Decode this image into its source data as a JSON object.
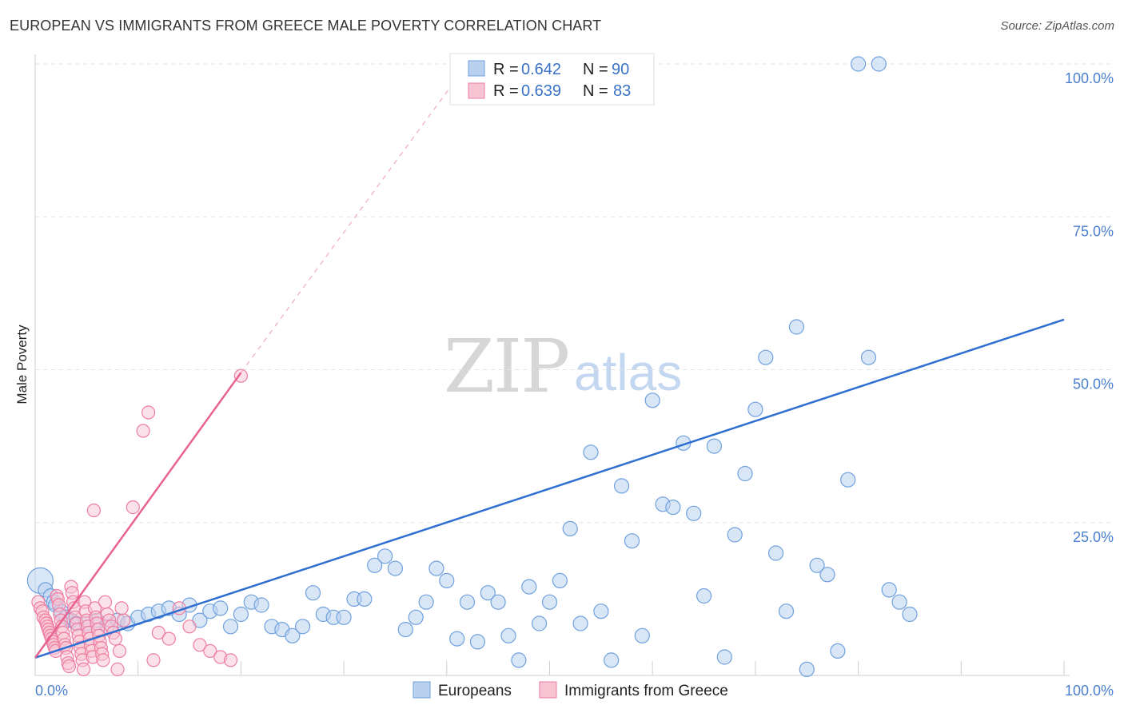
{
  "chart_data": {
    "type": "scatter",
    "title": "EUROPEAN VS IMMIGRANTS FROM GREECE MALE POVERTY CORRELATION CHART",
    "source": "Source: ZipAtlas.com",
    "xlabel": "",
    "ylabel": "Male Poverty",
    "xlim": [
      0,
      100
    ],
    "ylim": [
      0,
      100
    ],
    "x_tick_labels": [
      {
        "value": 0,
        "label": "0.0%"
      },
      {
        "value": 100,
        "label": "100.0%"
      }
    ],
    "y_tick_labels": [
      {
        "value": 25,
        "label": "25.0%"
      },
      {
        "value": 50,
        "label": "50.0%"
      },
      {
        "value": 75,
        "label": "75.0%"
      },
      {
        "value": 100,
        "label": "100.0%"
      }
    ],
    "watermark": {
      "part1": "ZIP",
      "part2": "atlas"
    },
    "legend": [
      {
        "r_label": "R = ",
        "r_value": "0.642",
        "n_label": "N = ",
        "n_value": "90"
      },
      {
        "r_label": "R = ",
        "r_value": "0.639",
        "n_label": "N = ",
        "n_value": "83"
      }
    ],
    "series": [
      {
        "name": "Europeans",
        "color": "#6fa1de",
        "fill": "#b9d1ef",
        "trendline": {
          "x": [
            0,
            100
          ],
          "y": [
            2.9,
            58.2
          ]
        },
        "points": [
          [
            0.5,
            15.5
          ],
          [
            1,
            14
          ],
          [
            1.5,
            13
          ],
          [
            1.8,
            12
          ],
          [
            2,
            11.5
          ],
          [
            2.5,
            10.5
          ],
          [
            3,
            9.5
          ],
          [
            3.5,
            9
          ],
          [
            4,
            8.5
          ],
          [
            5,
            8.5
          ],
          [
            6,
            9
          ],
          [
            7,
            8
          ],
          [
            8,
            9
          ],
          [
            9,
            8.5
          ],
          [
            10,
            9.5
          ],
          [
            11,
            10
          ],
          [
            12,
            10.5
          ],
          [
            13,
            11
          ],
          [
            14,
            10
          ],
          [
            15,
            11.5
          ],
          [
            16,
            9
          ],
          [
            17,
            10.5
          ],
          [
            18,
            11
          ],
          [
            19,
            8
          ],
          [
            20,
            10
          ],
          [
            21,
            12
          ],
          [
            22,
            11.5
          ],
          [
            23,
            8
          ],
          [
            24,
            7.5
          ],
          [
            25,
            6.5
          ],
          [
            26,
            8
          ],
          [
            27,
            13.5
          ],
          [
            28,
            10
          ],
          [
            29,
            9.5
          ],
          [
            30,
            9.5
          ],
          [
            31,
            12.5
          ],
          [
            32,
            12.5
          ],
          [
            33,
            18
          ],
          [
            34,
            19.5
          ],
          [
            35,
            17.5
          ],
          [
            36,
            7.5
          ],
          [
            37,
            9.5
          ],
          [
            38,
            12
          ],
          [
            39,
            17.5
          ],
          [
            40,
            15.5
          ],
          [
            41,
            6
          ],
          [
            42,
            12
          ],
          [
            43,
            5.5
          ],
          [
            44,
            13.5
          ],
          [
            45,
            12
          ],
          [
            46,
            6.5
          ],
          [
            47,
            2.5
          ],
          [
            48,
            14.5
          ],
          [
            49,
            8.5
          ],
          [
            50,
            12
          ],
          [
            51,
            15.5
          ],
          [
            52,
            24
          ],
          [
            53,
            8.5
          ],
          [
            54,
            36.5
          ],
          [
            55,
            10.5
          ],
          [
            56,
            2.5
          ],
          [
            57,
            31
          ],
          [
            58,
            22
          ],
          [
            59,
            6.5
          ],
          [
            60,
            45
          ],
          [
            61,
            28
          ],
          [
            62,
            27.5
          ],
          [
            63,
            38
          ],
          [
            64,
            26.5
          ],
          [
            65,
            13
          ],
          [
            66,
            37.5
          ],
          [
            67,
            3
          ],
          [
            68,
            23
          ],
          [
            69,
            33
          ],
          [
            70,
            43.5
          ],
          [
            71,
            52
          ],
          [
            72,
            20
          ],
          [
            73,
            10.5
          ],
          [
            74,
            57
          ],
          [
            75,
            1
          ],
          [
            76,
            18
          ],
          [
            77,
            16.5
          ],
          [
            78,
            4
          ],
          [
            79,
            32
          ],
          [
            80,
            100
          ],
          [
            81,
            52
          ],
          [
            82,
            100
          ],
          [
            83,
            14
          ],
          [
            84,
            12
          ],
          [
            85,
            10
          ]
        ]
      },
      {
        "name": "Immigrants from Greece",
        "color": "#ee7da1",
        "fill": "#f7c4d4",
        "trendline": {
          "x": [
            0,
            20
          ],
          "y": [
            2.9,
            49.5
          ]
        },
        "trendline_dashed": {
          "x": [
            20,
            42
          ],
          "y": [
            49.5,
            100
          ]
        },
        "points": [
          [
            0.3,
            12
          ],
          [
            0.5,
            11
          ],
          [
            0.7,
            10.5
          ],
          [
            0.8,
            9.5
          ],
          [
            1,
            9
          ],
          [
            1.1,
            8.5
          ],
          [
            1.2,
            8
          ],
          [
            1.3,
            7.5
          ],
          [
            1.4,
            7
          ],
          [
            1.5,
            6.5
          ],
          [
            1.6,
            6
          ],
          [
            1.7,
            5.5
          ],
          [
            1.8,
            5
          ],
          [
            1.9,
            4.5
          ],
          [
            2,
            4
          ],
          [
            2.1,
            13
          ],
          [
            2.2,
            12.5
          ],
          [
            2.3,
            11.5
          ],
          [
            2.4,
            10
          ],
          [
            2.5,
            9
          ],
          [
            2.6,
            8
          ],
          [
            2.7,
            7
          ],
          [
            2.8,
            6
          ],
          [
            2.9,
            5
          ],
          [
            3,
            4.5
          ],
          [
            3.1,
            3
          ],
          [
            3.2,
            2
          ],
          [
            3.3,
            1.5
          ],
          [
            3.5,
            14.5
          ],
          [
            3.6,
            13.5
          ],
          [
            3.7,
            12
          ],
          [
            3.8,
            11
          ],
          [
            3.9,
            9.5
          ],
          [
            4,
            8.5
          ],
          [
            4.1,
            7.5
          ],
          [
            4.2,
            6.5
          ],
          [
            4.3,
            5.5
          ],
          [
            4.4,
            4.5
          ],
          [
            4.5,
            3.5
          ],
          [
            4.6,
            2.5
          ],
          [
            4.7,
            1
          ],
          [
            4.8,
            12
          ],
          [
            4.9,
            10.5
          ],
          [
            5,
            9
          ],
          [
            5.1,
            8
          ],
          [
            5.2,
            7
          ],
          [
            5.3,
            6
          ],
          [
            5.4,
            5
          ],
          [
            5.5,
            4
          ],
          [
            5.6,
            3
          ],
          [
            5.7,
            27
          ],
          [
            5.8,
            11
          ],
          [
            5.9,
            9.5
          ],
          [
            6,
            8.5
          ],
          [
            6.1,
            7.5
          ],
          [
            6.2,
            6.5
          ],
          [
            6.3,
            5.5
          ],
          [
            6.4,
            4.5
          ],
          [
            6.5,
            3.5
          ],
          [
            6.6,
            2.5
          ],
          [
            6.8,
            12
          ],
          [
            7,
            10
          ],
          [
            7.2,
            9
          ],
          [
            7.4,
            8
          ],
          [
            7.6,
            7
          ],
          [
            7.8,
            6
          ],
          [
            8,
            1
          ],
          [
            8.2,
            4
          ],
          [
            8.4,
            11
          ],
          [
            8.6,
            9
          ],
          [
            9.5,
            27.5
          ],
          [
            10.5,
            40
          ],
          [
            11,
            43
          ],
          [
            11.5,
            2.5
          ],
          [
            12,
            7
          ],
          [
            13,
            6
          ],
          [
            14,
            11
          ],
          [
            15,
            8
          ],
          [
            16,
            5
          ],
          [
            17,
            4
          ],
          [
            18,
            3
          ],
          [
            19,
            2.5
          ],
          [
            20,
            49
          ]
        ]
      }
    ]
  },
  "bottom_legend": [
    {
      "label": "Europeans"
    },
    {
      "label": "Immigrants from Greece"
    }
  ]
}
